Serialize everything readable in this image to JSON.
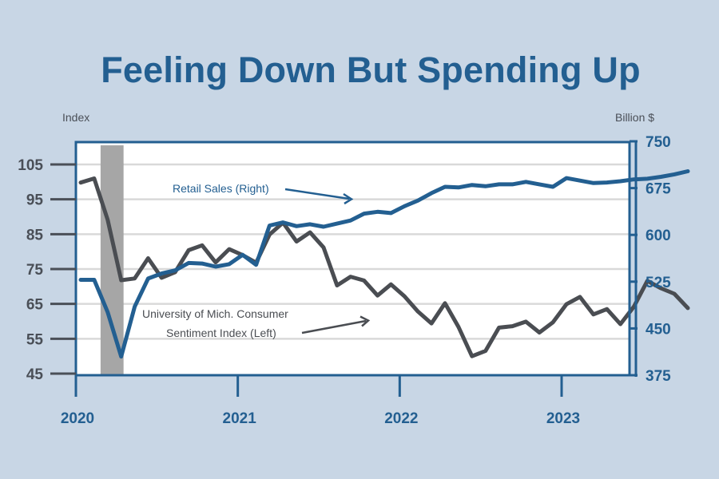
{
  "chart_data": {
    "type": "line",
    "title": "Feeling Down But Spending Up",
    "ylabel_left": "Index",
    "ylabel_right": "Billion $",
    "xlabel": "",
    "x_tick_labels": [
      "2020",
      "2021",
      "2022",
      "2023"
    ],
    "y_left_ticks": [
      45,
      55,
      65,
      75,
      85,
      95,
      105
    ],
    "y_right_ticks": [
      375,
      450,
      525,
      600,
      675,
      750
    ],
    "y_left_range": [
      45,
      110
    ],
    "y_right_range": [
      375,
      750
    ],
    "x_range": [
      "2020-01",
      "2023-10"
    ],
    "grid": true,
    "recession_shading": {
      "start": "2020-02",
      "end": "2020-04",
      "color": "#a6a6a6"
    },
    "x": [
      "2020-01",
      "2020-02",
      "2020-03",
      "2020-04",
      "2020-05",
      "2020-06",
      "2020-07",
      "2020-08",
      "2020-09",
      "2020-10",
      "2020-11",
      "2020-12",
      "2021-01",
      "2021-02",
      "2021-03",
      "2021-04",
      "2021-05",
      "2021-06",
      "2021-07",
      "2021-08",
      "2021-09",
      "2021-10",
      "2021-11",
      "2021-12",
      "2022-01",
      "2022-02",
      "2022-03",
      "2022-04",
      "2022-05",
      "2022-06",
      "2022-07",
      "2022-08",
      "2022-09",
      "2022-10",
      "2022-11",
      "2022-12",
      "2023-01",
      "2023-02",
      "2023-03",
      "2023-04",
      "2023-05",
      "2023-06",
      "2023-07",
      "2023-08",
      "2023-09",
      "2023-10"
    ],
    "series": [
      {
        "name": "University of Mich. Consumer Sentiment Index (Left)",
        "axis": "left",
        "color": "#4a4d52",
        "values": [
          99.8,
          101.0,
          89.1,
          71.8,
          72.3,
          78.1,
          72.5,
          74.1,
          80.4,
          81.8,
          76.9,
          80.7,
          79.0,
          76.8,
          84.9,
          88.3,
          82.9,
          85.5,
          81.2,
          70.3,
          72.8,
          71.7,
          67.4,
          70.6,
          67.2,
          62.8,
          59.4,
          65.2,
          58.4,
          50.0,
          51.5,
          58.2,
          58.6,
          59.9,
          56.8,
          59.7,
          64.9,
          67.0,
          62.0,
          63.5,
          59.2,
          64.2,
          71.6,
          69.5,
          67.9,
          63.8
        ]
      },
      {
        "name": "Retail Sales (Right)",
        "axis": "right",
        "color": "#235f91",
        "values": [
          528,
          528,
          476,
          405,
          485,
          530,
          538,
          543,
          555,
          554,
          549,
          553,
          568,
          552,
          615,
          620,
          614,
          617,
          613,
          618,
          623,
          634,
          637,
          635,
          646,
          655,
          667,
          677,
          676,
          680,
          678,
          681,
          681,
          685,
          681,
          677,
          691,
          687,
          683,
          684,
          686,
          689,
          690,
          693,
          697,
          702
        ]
      }
    ],
    "annotations": [
      {
        "text": "Retail Sales (Right)",
        "color": "#235f91"
      },
      {
        "text_lines": [
          "University of Mich. Consumer",
          "Sentiment Index (Left)"
        ],
        "color": "#4a4d52"
      }
    ]
  }
}
